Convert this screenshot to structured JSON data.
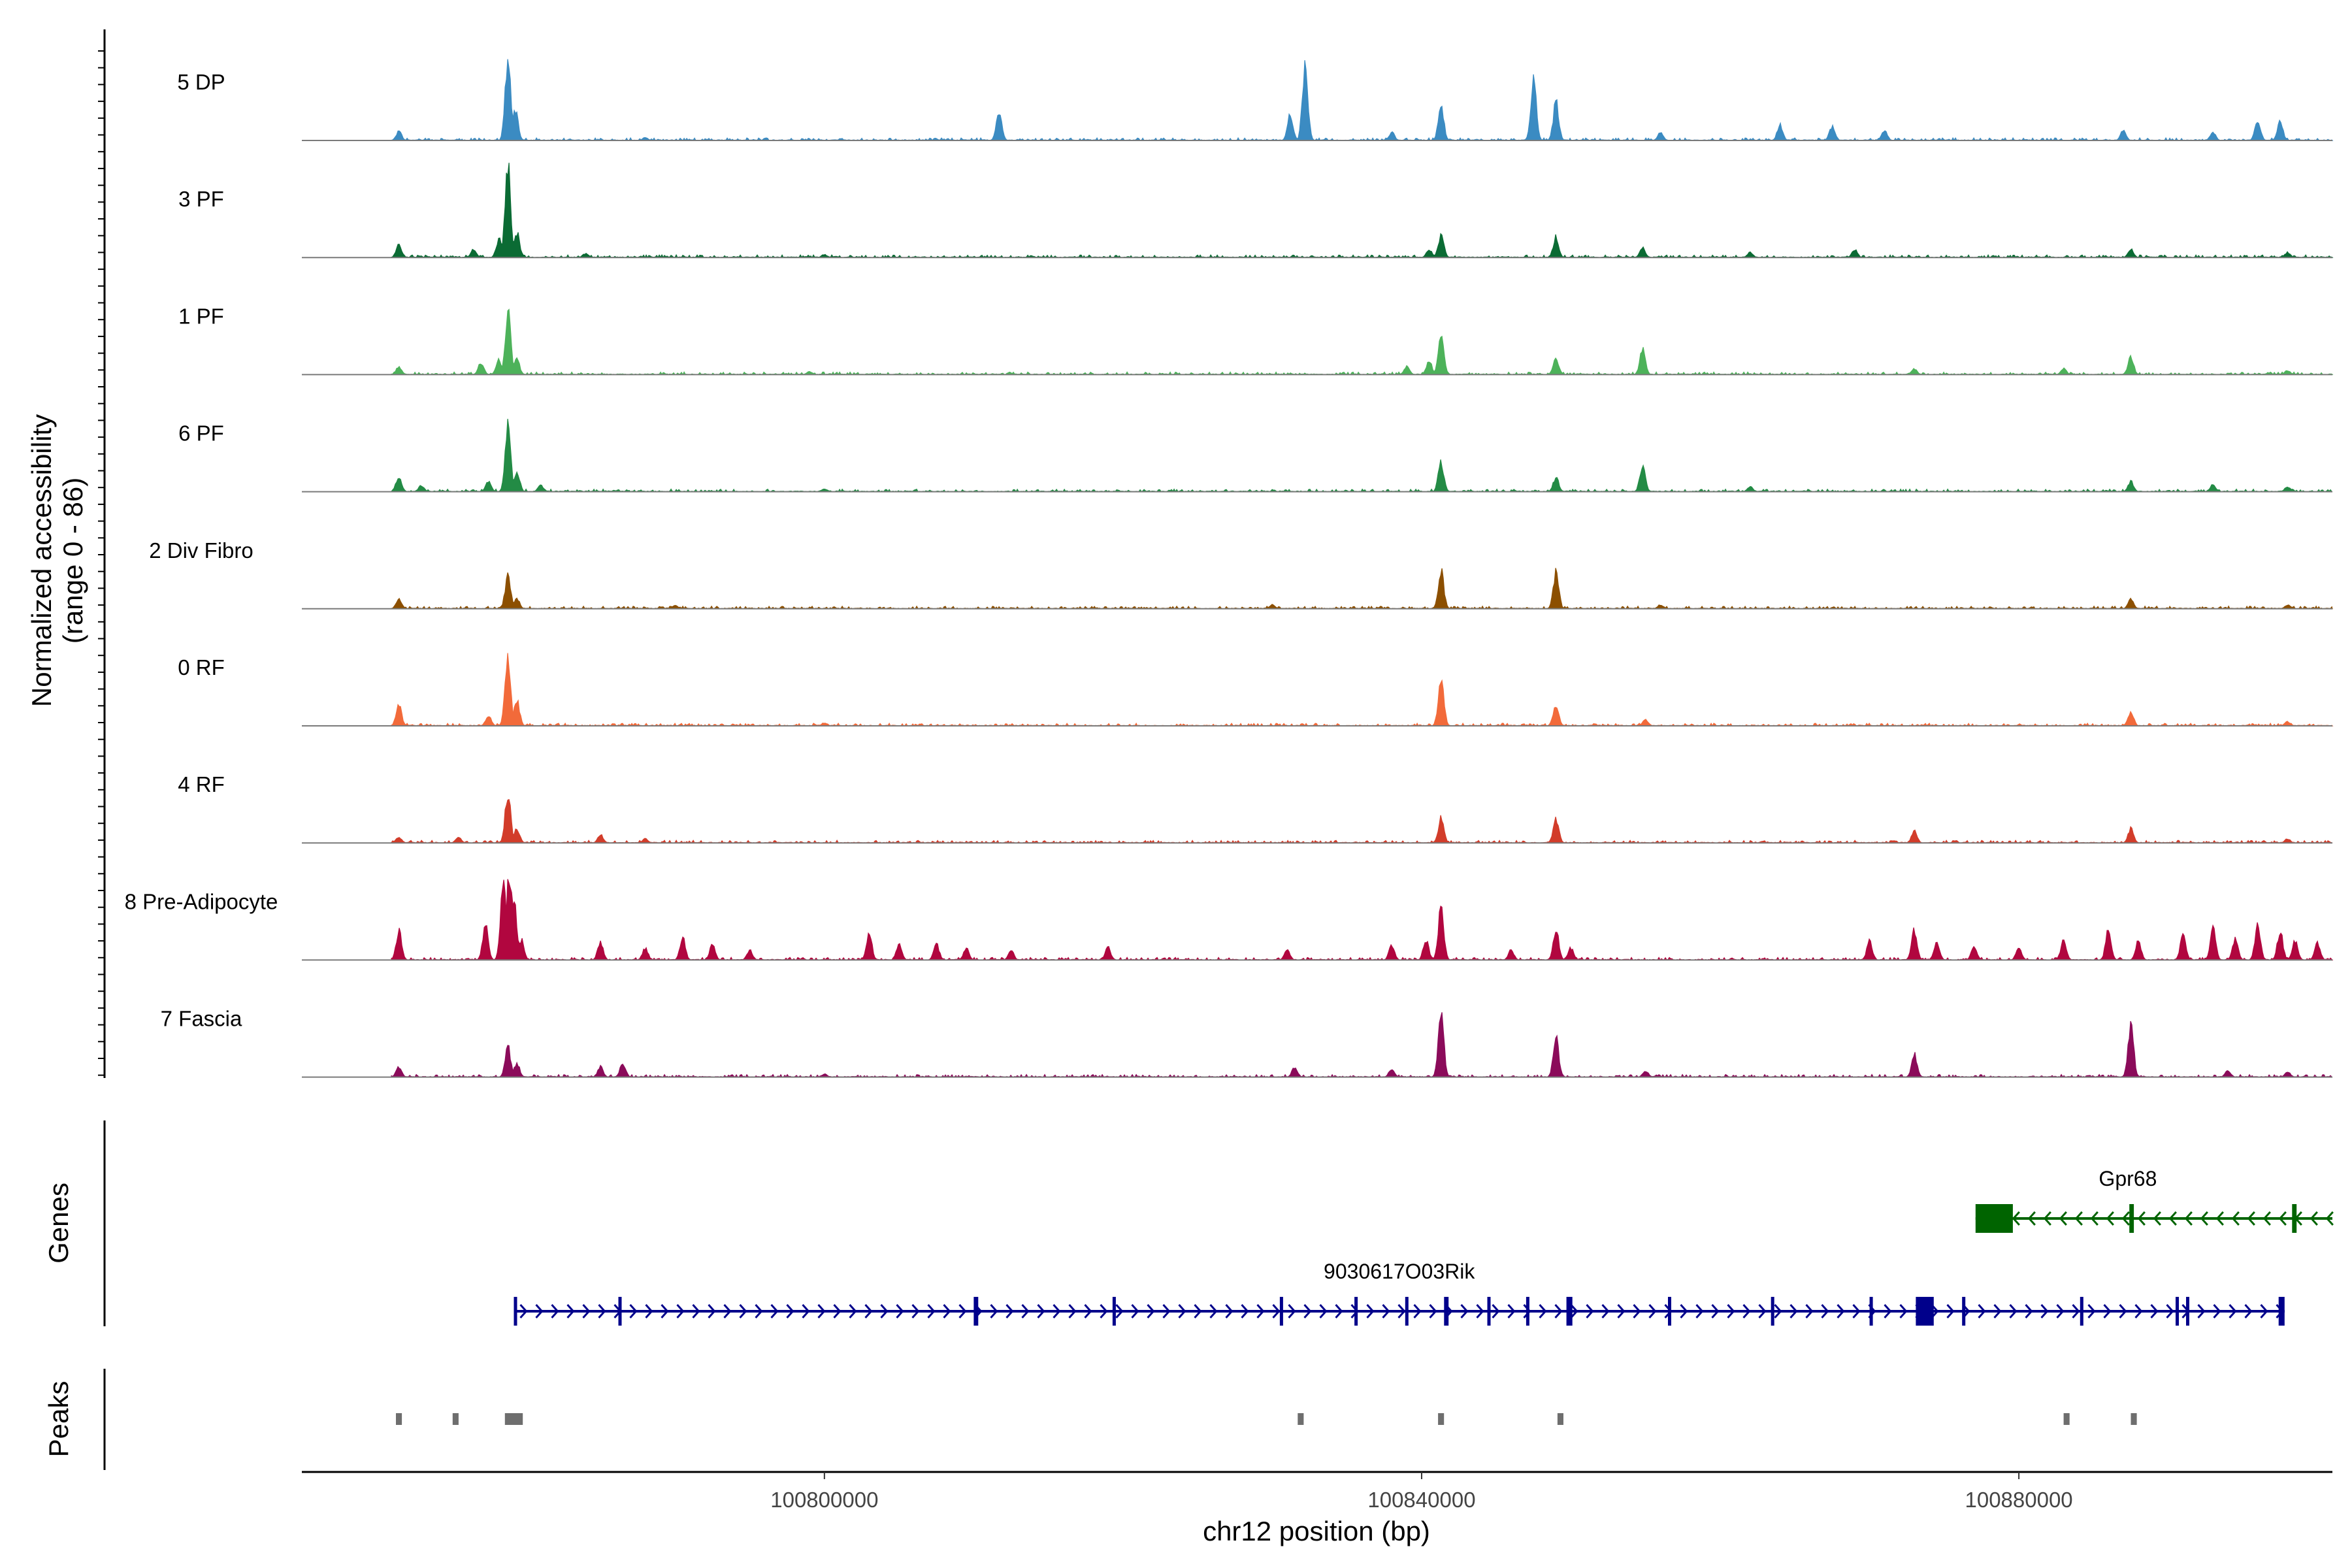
{
  "chart_data": {
    "type": "area",
    "title": "",
    "ylabel_line1": "Normalized accessibility",
    "ylabel_line2": "(range 0 - 86)",
    "xlabel": "chr12 position (bp)",
    "chromosome": "chr12",
    "xlim": [
      100765000,
      100901000
    ],
    "ylim": [
      0,
      86
    ],
    "x_ticks": [
      100800000,
      100840000,
      100880000
    ],
    "x_tick_labels": [
      "100800000",
      "100840000",
      "100880000"
    ],
    "panel_labels": {
      "genes": "Genes",
      "peaks": "Peaks"
    },
    "tracks": [
      {
        "name": "5 DP",
        "color": "#3b8bc2",
        "peaks": [
          [
            100771500,
            9
          ],
          [
            100778800,
            80
          ],
          [
            100779300,
            30
          ],
          [
            100788000,
            3
          ],
          [
            100811700,
            28
          ],
          [
            100832200,
            76
          ],
          [
            100831200,
            25
          ],
          [
            100838000,
            8
          ],
          [
            100841300,
            34
          ],
          [
            100847500,
            58
          ],
          [
            100849000,
            37
          ],
          [
            100856000,
            8
          ],
          [
            100864000,
            15
          ],
          [
            100867500,
            14
          ],
          [
            100871000,
            10
          ],
          [
            100887000,
            10
          ],
          [
            100893000,
            8
          ],
          [
            100896000,
            20
          ],
          [
            100897500,
            18
          ]
        ]
      },
      {
        "name": "3 PF",
        "color": "#0b6b34",
        "peaks": [
          [
            100771500,
            12
          ],
          [
            100776500,
            8
          ],
          [
            100778200,
            18
          ],
          [
            100778800,
            90
          ],
          [
            100779400,
            25
          ],
          [
            100784000,
            4
          ],
          [
            100800000,
            3
          ],
          [
            100840500,
            8
          ],
          [
            100841300,
            22
          ],
          [
            100849000,
            20
          ],
          [
            100854800,
            10
          ],
          [
            100862000,
            5
          ],
          [
            100869000,
            8
          ],
          [
            100887500,
            8
          ],
          [
            100898000,
            5
          ]
        ]
      },
      {
        "name": "1 PF",
        "color": "#4db25a",
        "peaks": [
          [
            100771500,
            8
          ],
          [
            100777000,
            12
          ],
          [
            100778200,
            14
          ],
          [
            100778800,
            62
          ],
          [
            100779400,
            15
          ],
          [
            100799000,
            3
          ],
          [
            100839000,
            8
          ],
          [
            100840500,
            14
          ],
          [
            100841300,
            42
          ],
          [
            100849000,
            16
          ],
          [
            100854800,
            24
          ],
          [
            100873000,
            6
          ],
          [
            100883000,
            6
          ],
          [
            100887500,
            18
          ],
          [
            100898000,
            4
          ]
        ]
      },
      {
        "name": "6 PF",
        "color": "#238b45",
        "peaks": [
          [
            100771500,
            15
          ],
          [
            100773000,
            6
          ],
          [
            100777500,
            10
          ],
          [
            100778800,
            68
          ],
          [
            100779400,
            20
          ],
          [
            100781000,
            6
          ],
          [
            100800000,
            3
          ],
          [
            100841300,
            28
          ],
          [
            100849000,
            14
          ],
          [
            100854800,
            26
          ],
          [
            100862000,
            5
          ],
          [
            100887500,
            10
          ],
          [
            100893000,
            7
          ],
          [
            100898000,
            5
          ]
        ]
      },
      {
        "name": "2 Div Fibro",
        "color": "#8c4f00",
        "peaks": [
          [
            100771500,
            10
          ],
          [
            100778800,
            32
          ],
          [
            100779400,
            10
          ],
          [
            100790000,
            3
          ],
          [
            100830000,
            4
          ],
          [
            100841300,
            38
          ],
          [
            100849000,
            36
          ],
          [
            100856000,
            4
          ],
          [
            100887500,
            10
          ],
          [
            100898000,
            4
          ]
        ]
      },
      {
        "name": "0 RF",
        "color": "#f26a3a",
        "peaks": [
          [
            100771500,
            20
          ],
          [
            100777500,
            10
          ],
          [
            100778800,
            68
          ],
          [
            100779400,
            25
          ],
          [
            100800000,
            3
          ],
          [
            100841300,
            48
          ],
          [
            100849000,
            22
          ],
          [
            100855000,
            6
          ],
          [
            100887500,
            14
          ],
          [
            100898000,
            4
          ]
        ]
      },
      {
        "name": "4 RF",
        "color": "#d23c2a",
        "peaks": [
          [
            100771500,
            6
          ],
          [
            100775500,
            6
          ],
          [
            100778800,
            48
          ],
          [
            100779400,
            14
          ],
          [
            100785000,
            8
          ],
          [
            100788000,
            4
          ],
          [
            100841300,
            24
          ],
          [
            100849000,
            24
          ],
          [
            100873000,
            12
          ],
          [
            100887500,
            14
          ],
          [
            100898000,
            4
          ]
        ]
      },
      {
        "name": "8 Pre-Adipocyte",
        "color": "#b1063f",
        "peaks": [
          [
            100771500,
            28
          ],
          [
            100777300,
            35
          ],
          [
            100778500,
            80
          ],
          [
            100778900,
            85
          ],
          [
            100779200,
            60
          ],
          [
            100779700,
            20
          ],
          [
            100785000,
            18
          ],
          [
            100788000,
            12
          ],
          [
            100790500,
            22
          ],
          [
            100792500,
            16
          ],
          [
            100795000,
            10
          ],
          [
            100803000,
            25
          ],
          [
            100805000,
            15
          ],
          [
            100807500,
            16
          ],
          [
            100809500,
            12
          ],
          [
            100812500,
            10
          ],
          [
            100819000,
            12
          ],
          [
            100831000,
            10
          ],
          [
            100838000,
            14
          ],
          [
            100840300,
            20
          ],
          [
            100841300,
            50
          ],
          [
            100846000,
            10
          ],
          [
            100849000,
            30
          ],
          [
            100850000,
            12
          ],
          [
            100870000,
            18
          ],
          [
            100873000,
            30
          ],
          [
            100874500,
            18
          ],
          [
            100877000,
            14
          ],
          [
            100880000,
            12
          ],
          [
            100883000,
            20
          ],
          [
            100886000,
            30
          ],
          [
            100888000,
            18
          ],
          [
            100891000,
            25
          ],
          [
            100893000,
            30
          ],
          [
            100894500,
            22
          ],
          [
            100896000,
            34
          ],
          [
            100897500,
            28
          ],
          [
            100898500,
            20
          ],
          [
            100900000,
            16
          ]
        ]
      },
      {
        "name": "7 Fascia",
        "color": "#8b0b5a",
        "peaks": [
          [
            100771500,
            10
          ],
          [
            100778800,
            30
          ],
          [
            100779400,
            14
          ],
          [
            100785000,
            10
          ],
          [
            100786500,
            14
          ],
          [
            100800000,
            3
          ],
          [
            100831500,
            10
          ],
          [
            100838000,
            8
          ],
          [
            100841300,
            62
          ],
          [
            100849000,
            38
          ],
          [
            100855000,
            6
          ],
          [
            100873000,
            22
          ],
          [
            100887500,
            52
          ],
          [
            100894000,
            6
          ],
          [
            100898000,
            5
          ]
        ]
      }
    ],
    "genes": [
      {
        "name": "Gpr68",
        "strand": "-",
        "start": 100877100,
        "end": 100901000,
        "color": "#006400",
        "exons": [
          [
            100877100,
            100879600
          ],
          [
            100887400,
            100887700
          ],
          [
            100898300,
            100898600
          ]
        ]
      },
      {
        "name": "9030617O03Rik",
        "strand": "+",
        "start": 100779200,
        "end": 100897800,
        "color": "#00008b",
        "exons": [
          [
            100779200,
            100779400
          ],
          [
            100786200,
            100786400
          ],
          [
            100810000,
            100810300
          ],
          [
            100819300,
            100819500
          ],
          [
            100830500,
            100830700
          ],
          [
            100835500,
            100835700
          ],
          [
            100838900,
            100839100
          ],
          [
            100841500,
            100841800
          ],
          [
            100844400,
            100844600
          ],
          [
            100847000,
            100847200
          ],
          [
            100849700,
            100850100
          ],
          [
            100856500,
            100856700
          ],
          [
            100863400,
            100863600
          ],
          [
            100870000,
            100870200
          ],
          [
            100873100,
            100874300
          ],
          [
            100876200,
            100876400
          ],
          [
            100884100,
            100884300
          ],
          [
            100890500,
            100890700
          ],
          [
            100891200,
            100891400
          ],
          [
            100897400,
            100897800
          ]
        ]
      }
    ],
    "peak_regions": [
      [
        100771300,
        100771700
      ],
      [
        100775100,
        100775500
      ],
      [
        100778600,
        100779800
      ],
      [
        100831700,
        100832100
      ],
      [
        100841100,
        100841500
      ],
      [
        100849100,
        100849500
      ],
      [
        100883000,
        100883400
      ],
      [
        100887500,
        100887900
      ]
    ]
  }
}
